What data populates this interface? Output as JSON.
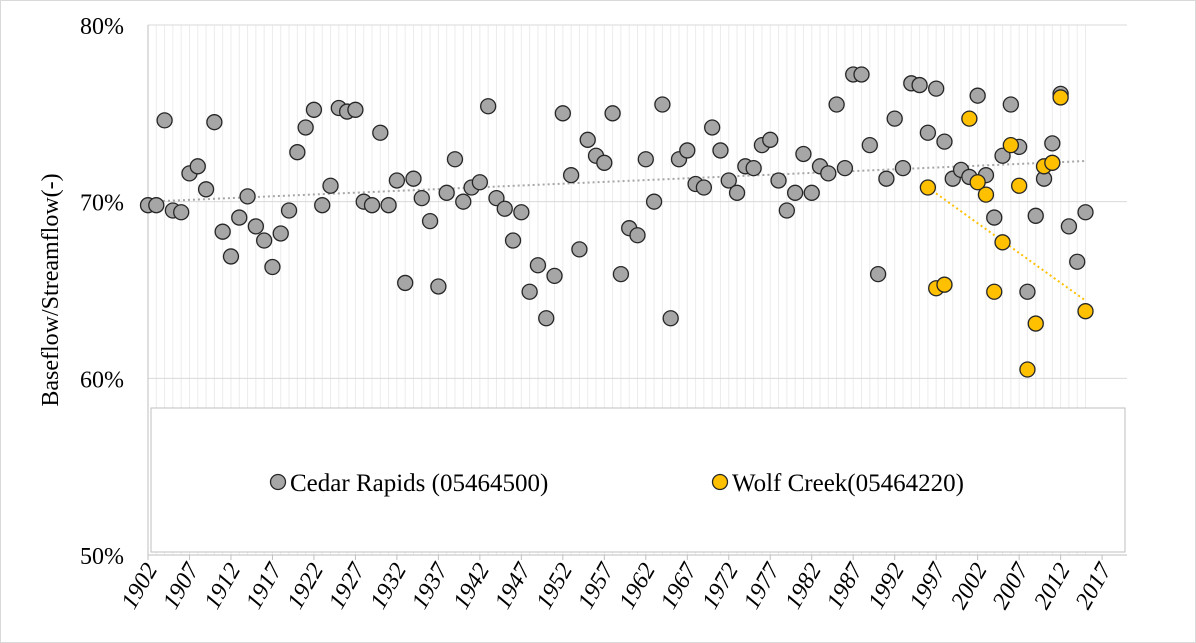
{
  "chart_data": {
    "type": "scatter",
    "ylabel": "Baseflow/Streamflow(-)",
    "xlim": [
      1902,
      2020
    ],
    "xticks": [
      1902,
      1907,
      1912,
      1917,
      1922,
      1927,
      1932,
      1937,
      1942,
      1947,
      1952,
      1957,
      1962,
      1967,
      1972,
      1977,
      1982,
      1987,
      1992,
      1997,
      2002,
      2007,
      2012,
      2017
    ],
    "ylim": [
      50,
      80
    ],
    "yticks": [
      {
        "value": 50,
        "label": "50%"
      },
      {
        "value": 60,
        "label": "60%"
      },
      {
        "value": 70,
        "label": "70%"
      },
      {
        "value": 80,
        "label": "80%"
      }
    ],
    "grid": true,
    "series": [
      {
        "name": "Cedar Rapids (05464500)",
        "color": "#a6a6a6",
        "x": [
          1902,
          1903,
          1904,
          1905,
          1906,
          1907,
          1908,
          1909,
          1910,
          1911,
          1912,
          1913,
          1914,
          1915,
          1916,
          1917,
          1918,
          1919,
          1920,
          1921,
          1922,
          1923,
          1924,
          1925,
          1926,
          1927,
          1928,
          1929,
          1930,
          1931,
          1932,
          1933,
          1934,
          1935,
          1936,
          1937,
          1938,
          1939,
          1940,
          1941,
          1942,
          1943,
          1944,
          1945,
          1946,
          1947,
          1948,
          1949,
          1950,
          1951,
          1952,
          1953,
          1954,
          1955,
          1956,
          1957,
          1958,
          1959,
          1960,
          1961,
          1962,
          1963,
          1964,
          1965,
          1966,
          1967,
          1968,
          1969,
          1970,
          1971,
          1972,
          1973,
          1974,
          1975,
          1976,
          1977,
          1978,
          1979,
          1980,
          1981,
          1982,
          1983,
          1984,
          1985,
          1986,
          1987,
          1988,
          1989,
          1990,
          1991,
          1992,
          1993,
          1994,
          1995,
          1996,
          1997,
          1998,
          1999,
          2000,
          2001,
          2002,
          2003,
          2004,
          2005,
          2006,
          2007,
          2008,
          2009,
          2010,
          2011,
          2012,
          2013,
          2014,
          2015
        ],
        "values": [
          69.8,
          69.8,
          74.6,
          69.5,
          69.4,
          71.6,
          72.0,
          70.7,
          74.5,
          68.3,
          66.9,
          69.1,
          70.3,
          68.6,
          67.8,
          66.3,
          68.2,
          69.5,
          72.8,
          74.2,
          75.2,
          69.8,
          70.9,
          75.3,
          75.1,
          75.2,
          70.0,
          69.8,
          73.9,
          69.8,
          71.2,
          65.4,
          71.3,
          70.2,
          68.9,
          65.2,
          70.5,
          72.4,
          70.0,
          70.8,
          71.1,
          75.4,
          70.2,
          69.6,
          67.8,
          69.4,
          64.9,
          66.4,
          63.4,
          65.8,
          75.0,
          71.5,
          67.3,
          73.5,
          72.6,
          72.2,
          75.0,
          65.9,
          68.5,
          68.1,
          72.4,
          70.0,
          75.5,
          63.4,
          72.4,
          72.9,
          71.0,
          70.8,
          74.2,
          72.9,
          71.2,
          70.5,
          72.0,
          71.9,
          73.2,
          73.5,
          71.2,
          69.5,
          70.5,
          72.7,
          70.5,
          72.0,
          71.6,
          75.5,
          71.9,
          77.2,
          77.2,
          73.2,
          65.9,
          71.3,
          74.7,
          71.9,
          76.7,
          76.6,
          73.9,
          76.4,
          73.4,
          71.3,
          71.8,
          71.4,
          76.0,
          71.5,
          69.1,
          72.6,
          75.5,
          73.1,
          64.9,
          69.2,
          71.3,
          73.3,
          76.1,
          68.6,
          66.6,
          69.4
        ],
        "trend": {
          "x": [
            1902,
            2015
          ],
          "values": [
            70.0,
            72.3
          ]
        }
      },
      {
        "name": "Wolf Creek(05464220)",
        "color": "#ffc000",
        "x": [
          1996,
          1997,
          1998,
          2001,
          2002,
          2003,
          2004,
          2005,
          2006,
          2007,
          2008,
          2009,
          2010,
          2011,
          2012,
          2015
        ],
        "values": [
          70.8,
          65.1,
          65.3,
          74.7,
          71.1,
          70.4,
          64.9,
          67.7,
          73.2,
          70.9,
          60.5,
          63.1,
          72.0,
          72.2,
          75.9,
          63.8
        ],
        "trend": {
          "x": [
            1996,
            2015
          ],
          "values": [
            70.8,
            64.4
          ]
        }
      }
    ]
  }
}
